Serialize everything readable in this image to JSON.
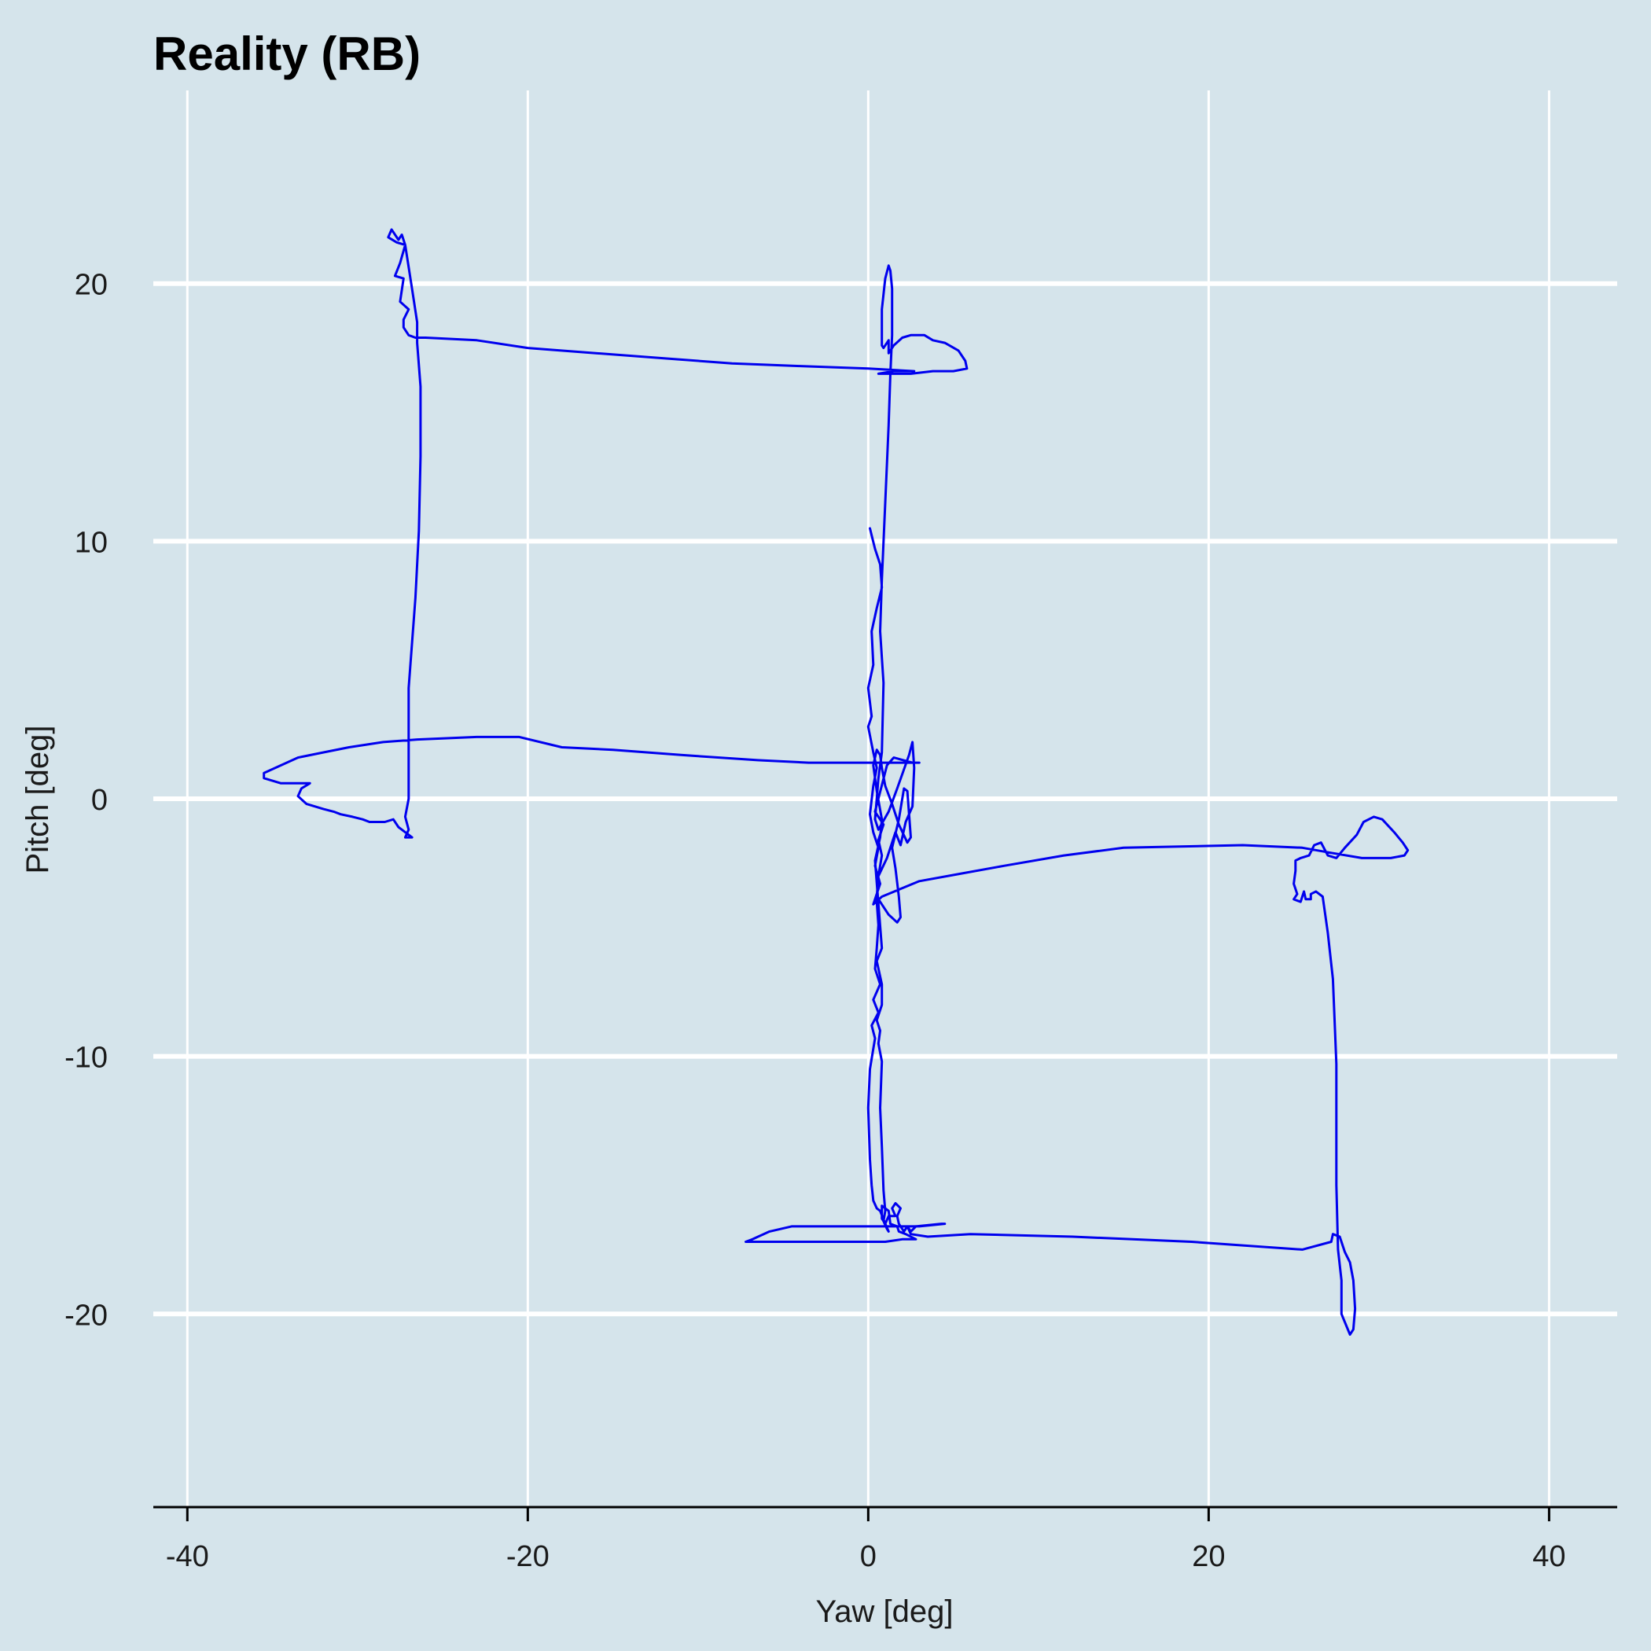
{
  "chart_data": {
    "type": "line",
    "title": "Reality (RB)",
    "xlabel": "Yaw [deg]",
    "ylabel": "Pitch [deg]",
    "xlim": [
      -42,
      44
    ],
    "ylim": [
      -27.5,
      27.5
    ],
    "x_ticks": [
      -40,
      -20,
      0,
      20,
      40
    ],
    "y_ticks": [
      -20,
      -10,
      0,
      10,
      20
    ],
    "x_tick_labels": [
      "-40",
      "-20",
      "0",
      "20",
      "40"
    ],
    "y_tick_labels": [
      "-20",
      "-10",
      "0",
      "10",
      "20"
    ],
    "grid": true,
    "legend": "none",
    "colors": {
      "background": "#d5e4eb",
      "grid": "#ffffff",
      "line": "#0000ee",
      "axis": "#000000"
    },
    "series": [
      {
        "points": [
          [
            0.1,
            10.5
          ],
          [
            0.4,
            9.7
          ],
          [
            0.7,
            9.1
          ],
          [
            0.8,
            8.2
          ],
          [
            0.5,
            7.4
          ],
          [
            0.2,
            6.5
          ],
          [
            0.3,
            5.2
          ],
          [
            0.0,
            4.3
          ],
          [
            0.2,
            3.2
          ],
          [
            0.0,
            2.8
          ],
          [
            0.3,
            1.8
          ],
          [
            0.5,
            1.2
          ],
          [
            0.3,
            0.5
          ],
          [
            0.1,
            -0.6
          ],
          [
            0.3,
            -1.3
          ],
          [
            0.6,
            -1.9
          ],
          [
            0.4,
            -2.6
          ],
          [
            0.7,
            -3.3
          ],
          [
            0.3,
            -4.1
          ],
          [
            0.8,
            -3.8
          ],
          [
            3.0,
            -3.2
          ],
          [
            5.5,
            -2.9
          ],
          [
            8.0,
            -2.6
          ],
          [
            11.5,
            -2.2
          ],
          [
            15.0,
            -1.9
          ],
          [
            22.0,
            -1.8
          ],
          [
            25.5,
            -1.9
          ],
          [
            27.2,
            -2.1
          ],
          [
            29.0,
            -2.3
          ],
          [
            30.7,
            -2.3
          ],
          [
            31.5,
            -2.2
          ],
          [
            31.7,
            -2.0
          ],
          [
            31.4,
            -1.7
          ],
          [
            30.9,
            -1.3
          ],
          [
            30.2,
            -0.8
          ],
          [
            29.7,
            -0.7
          ],
          [
            29.1,
            -0.9
          ],
          [
            28.7,
            -1.4
          ],
          [
            28.0,
            -1.9
          ],
          [
            27.5,
            -2.3
          ],
          [
            27.0,
            -2.2
          ],
          [
            26.6,
            -1.7
          ],
          [
            26.2,
            -1.8
          ],
          [
            25.9,
            -2.2
          ],
          [
            25.4,
            -2.3
          ],
          [
            25.1,
            -2.4
          ],
          [
            25.1,
            -2.8
          ],
          [
            25.0,
            -3.3
          ],
          [
            25.2,
            -3.7
          ],
          [
            25.0,
            -3.9
          ],
          [
            25.4,
            -4.0
          ],
          [
            25.6,
            -3.6
          ],
          [
            25.7,
            -3.9
          ],
          [
            26.0,
            -3.9
          ],
          [
            26.0,
            -3.7
          ],
          [
            26.3,
            -3.6
          ],
          [
            26.7,
            -3.8
          ],
          [
            27.0,
            -5.2
          ],
          [
            27.3,
            -7.0
          ],
          [
            27.5,
            -10.3
          ],
          [
            27.5,
            -12.0
          ],
          [
            27.5,
            -15.0
          ],
          [
            27.6,
            -17.5
          ],
          [
            27.8,
            -18.7
          ],
          [
            27.8,
            -20.0
          ],
          [
            28.3,
            -20.8
          ],
          [
            28.5,
            -20.6
          ],
          [
            28.6,
            -19.8
          ],
          [
            28.5,
            -18.7
          ],
          [
            28.3,
            -18.0
          ],
          [
            28.0,
            -17.6
          ],
          [
            27.7,
            -17.0
          ],
          [
            27.3,
            -16.9
          ],
          [
            27.2,
            -17.2
          ],
          [
            25.5,
            -17.5
          ],
          [
            19.0,
            -17.2
          ],
          [
            12.0,
            -17.0
          ],
          [
            6.0,
            -16.9
          ],
          [
            3.5,
            -17.0
          ],
          [
            2.5,
            -16.9
          ],
          [
            2.3,
            -16.6
          ],
          [
            2.8,
            -16.6
          ],
          [
            4.3,
            -16.5
          ],
          [
            4.5,
            -16.5
          ],
          [
            3.0,
            -16.6
          ],
          [
            1.0,
            -16.6
          ],
          [
            -4.5,
            -16.6
          ],
          [
            -5.8,
            -16.8
          ],
          [
            -6.8,
            -17.1
          ],
          [
            -7.2,
            -17.2
          ],
          [
            -4.0,
            -17.2
          ],
          [
            -1.0,
            -17.2
          ],
          [
            1.0,
            -17.2
          ],
          [
            2.0,
            -17.1
          ],
          [
            2.8,
            -17.1
          ],
          [
            2.2,
            -16.9
          ],
          [
            1.8,
            -16.8
          ],
          [
            1.7,
            -16.6
          ],
          [
            1.3,
            -16.5
          ],
          [
            1.2,
            -16.0
          ],
          [
            1.0,
            -15.9
          ],
          [
            0.8,
            -15.8
          ],
          [
            0.8,
            -16.3
          ],
          [
            1.0,
            -16.5
          ],
          [
            0.7,
            -16.0
          ],
          [
            0.5,
            -15.9
          ],
          [
            0.3,
            -15.6
          ],
          [
            0.2,
            -15.0
          ],
          [
            0.1,
            -14.0
          ],
          [
            0.0,
            -12.0
          ],
          [
            0.1,
            -10.5
          ],
          [
            0.4,
            -9.3
          ],
          [
            0.2,
            -8.8
          ],
          [
            0.6,
            -8.3
          ],
          [
            0.3,
            -7.8
          ],
          [
            0.7,
            -7.2
          ],
          [
            0.4,
            -6.6
          ],
          [
            0.5,
            -5.8
          ],
          [
            0.6,
            -4.9
          ],
          [
            0.5,
            -4.0
          ],
          [
            0.6,
            -3.0
          ],
          [
            0.8,
            -2.2
          ],
          [
            0.6,
            -1.6
          ],
          [
            0.9,
            -1.0
          ],
          [
            0.4,
            -0.5
          ],
          [
            1.1,
            1.3
          ],
          [
            1.5,
            1.6
          ],
          [
            2.6,
            1.4
          ],
          [
            3.0,
            1.4
          ],
          [
            1.2,
            1.4
          ],
          [
            0.4,
            1.4
          ],
          [
            -2.0,
            1.4
          ],
          [
            -3.5,
            1.4
          ],
          [
            -6.5,
            1.5
          ],
          [
            -11.0,
            1.7
          ],
          [
            -15.0,
            1.9
          ],
          [
            -18.0,
            2.0
          ],
          [
            -20.5,
            2.4
          ],
          [
            -23.0,
            2.4
          ],
          [
            -26.5,
            2.3
          ],
          [
            -28.5,
            2.2
          ],
          [
            -30.5,
            2.0
          ],
          [
            -32.0,
            1.8
          ],
          [
            -33.5,
            1.6
          ],
          [
            -35.5,
            1.0
          ],
          [
            -35.5,
            0.8
          ],
          [
            -34.5,
            0.6
          ],
          [
            -33.5,
            0.6
          ],
          [
            -32.8,
            0.6
          ],
          [
            -33.3,
            0.4
          ],
          [
            -33.5,
            0.1
          ],
          [
            -33.0,
            -0.2
          ],
          [
            -32.0,
            -0.4
          ],
          [
            -31.4,
            -0.5
          ],
          [
            -31.0,
            -0.6
          ],
          [
            -30.3,
            -0.7
          ],
          [
            -29.7,
            -0.8
          ],
          [
            -29.3,
            -0.9
          ],
          [
            -28.4,
            -0.9
          ],
          [
            -27.9,
            -0.8
          ],
          [
            -27.6,
            -1.1
          ],
          [
            -27.2,
            -1.3
          ],
          [
            -26.8,
            -1.5
          ],
          [
            -27.2,
            -1.5
          ],
          [
            -27.0,
            -1.2
          ],
          [
            -27.2,
            -0.7
          ],
          [
            -27.0,
            0.0
          ],
          [
            -27.0,
            1.5
          ],
          [
            -27.0,
            4.3
          ],
          [
            -26.6,
            7.8
          ],
          [
            -26.4,
            10.4
          ],
          [
            -26.3,
            13.3
          ],
          [
            -26.3,
            16.0
          ],
          [
            -26.5,
            17.7
          ],
          [
            -26.5,
            18.5
          ],
          [
            -26.8,
            19.8
          ],
          [
            -27.2,
            21.5
          ],
          [
            -27.4,
            21.9
          ],
          [
            -27.6,
            21.7
          ],
          [
            -28.0,
            22.1
          ],
          [
            -28.2,
            21.8
          ],
          [
            -27.7,
            21.6
          ],
          [
            -27.2,
            21.5
          ],
          [
            -27.5,
            20.8
          ],
          [
            -27.8,
            20.3
          ],
          [
            -27.3,
            20.2
          ],
          [
            -27.5,
            19.3
          ],
          [
            -27.0,
            19.0
          ],
          [
            -27.3,
            18.6
          ],
          [
            -27.3,
            18.3
          ],
          [
            -27.0,
            18.0
          ],
          [
            -26.6,
            17.9
          ],
          [
            -26.0,
            17.9
          ],
          [
            -23.0,
            17.8
          ],
          [
            -20.0,
            17.5
          ],
          [
            -16.0,
            17.3
          ],
          [
            -12.0,
            17.1
          ],
          [
            -8.0,
            16.9
          ],
          [
            -4.0,
            16.8
          ],
          [
            0.0,
            16.7
          ],
          [
            2.7,
            16.6
          ],
          [
            1.5,
            16.6
          ],
          [
            0.6,
            16.5
          ],
          [
            2.5,
            16.5
          ],
          [
            3.8,
            16.6
          ],
          [
            5.0,
            16.6
          ],
          [
            5.8,
            16.7
          ],
          [
            5.7,
            17.0
          ],
          [
            5.3,
            17.4
          ],
          [
            4.5,
            17.7
          ],
          [
            3.8,
            17.8
          ],
          [
            3.3,
            18.0
          ],
          [
            2.5,
            18.0
          ],
          [
            2.0,
            17.9
          ],
          [
            1.5,
            17.6
          ],
          [
            1.2,
            17.3
          ],
          [
            1.2,
            17.8
          ],
          [
            0.9,
            17.5
          ],
          [
            0.8,
            17.6
          ],
          [
            0.8,
            18.0
          ],
          [
            0.8,
            19.0
          ],
          [
            1.0,
            20.2
          ],
          [
            1.2,
            20.7
          ],
          [
            1.3,
            20.5
          ],
          [
            1.4,
            19.8
          ],
          [
            1.4,
            18.0
          ],
          [
            1.3,
            16.5
          ],
          [
            1.2,
            14.5
          ],
          [
            1.0,
            11.5
          ],
          [
            0.8,
            8.5
          ],
          [
            0.7,
            6.5
          ],
          [
            0.9,
            4.5
          ],
          [
            0.8,
            1.8
          ],
          [
            0.6,
            0.8
          ],
          [
            0.5,
            0.0
          ],
          [
            0.4,
            -0.8
          ],
          [
            0.6,
            -1.2
          ],
          [
            1.2,
            -0.5
          ],
          [
            1.7,
            0.4
          ],
          [
            2.4,
            1.7
          ],
          [
            2.6,
            2.2
          ],
          [
            2.7,
            1.2
          ],
          [
            2.6,
            -0.3
          ],
          [
            2.2,
            -0.9
          ],
          [
            1.9,
            -1.8
          ],
          [
            1.6,
            -1.3
          ],
          [
            1.1,
            -2.3
          ],
          [
            0.6,
            -3.0
          ],
          [
            0.5,
            -3.8
          ],
          [
            1.2,
            -4.5
          ],
          [
            1.7,
            -4.8
          ],
          [
            1.9,
            -4.6
          ],
          [
            1.8,
            -3.8
          ],
          [
            1.6,
            -2.7
          ],
          [
            1.4,
            -1.9
          ],
          [
            1.8,
            -0.8
          ],
          [
            2.1,
            0.4
          ],
          [
            2.3,
            0.3
          ],
          [
            2.4,
            -0.6
          ],
          [
            2.5,
            -1.5
          ],
          [
            2.3,
            -1.7
          ],
          [
            1.8,
            -1.0
          ],
          [
            1.4,
            -0.2
          ],
          [
            1.0,
            0.5
          ],
          [
            0.8,
            1.2
          ],
          [
            0.7,
            1.7
          ],
          [
            0.5,
            1.9
          ],
          [
            0.3,
            1.3
          ],
          [
            0.5,
            0.3
          ],
          [
            0.8,
            -0.8
          ],
          [
            0.7,
            -1.5
          ],
          [
            0.4,
            -2.4
          ],
          [
            0.8,
            -5.8
          ],
          [
            0.5,
            -6.3
          ],
          [
            0.8,
            -7.2
          ],
          [
            0.8,
            -8.0
          ],
          [
            0.5,
            -8.6
          ],
          [
            0.7,
            -9.0
          ],
          [
            0.6,
            -9.5
          ],
          [
            0.8,
            -10.2
          ],
          [
            0.7,
            -12.0
          ],
          [
            0.8,
            -13.5
          ],
          [
            0.9,
            -15.2
          ],
          [
            1.0,
            -16.0
          ],
          [
            0.9,
            -16.4
          ],
          [
            1.1,
            -16.7
          ],
          [
            1.2,
            -16.8
          ],
          [
            1.0,
            -16.5
          ],
          [
            1.2,
            -16.2
          ],
          [
            1.6,
            -16.2
          ],
          [
            1.4,
            -15.9
          ],
          [
            1.6,
            -15.7
          ],
          [
            1.9,
            -15.9
          ],
          [
            1.7,
            -16.2
          ],
          [
            1.8,
            -16.5
          ],
          [
            2.1,
            -16.8
          ],
          [
            2.3,
            -16.6
          ],
          [
            2.5,
            -16.8
          ],
          [
            2.8,
            -16.6
          ]
        ]
      }
    ]
  }
}
